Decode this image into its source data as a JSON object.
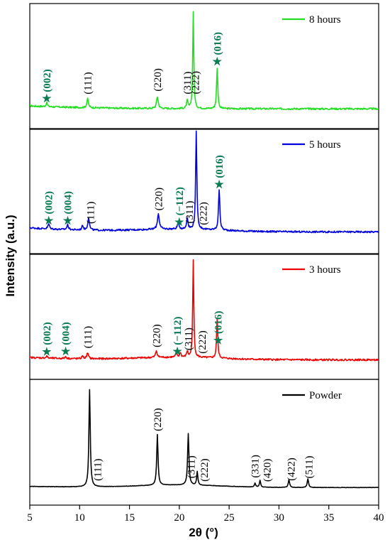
{
  "chart_data": {
    "type": "line",
    "xlabel": "2θ (°)",
    "ylabel": "Intensity (a.u.)",
    "xlim": [
      5,
      40
    ],
    "xticks": [
      5,
      10,
      15,
      20,
      25,
      30,
      35,
      40
    ],
    "xtick_labels": [
      "5",
      "10",
      "15",
      "20",
      "25",
      "30",
      "35",
      "40"
    ],
    "star_symbol": "★",
    "marker_color": "#0a7a52",
    "panels": [
      {
        "name": "8 hours",
        "color": "#22dd22",
        "legend_position": "top-right",
        "baseline": 0.05,
        "peaks": [
          {
            "x": 6.7,
            "h": 0.04,
            "w": 0.1
          },
          {
            "x": 10.8,
            "h": 0.09,
            "w": 0.12
          },
          {
            "x": 17.8,
            "h": 0.12,
            "w": 0.13
          },
          {
            "x": 20.8,
            "h": 0.08,
            "w": 0.1
          },
          {
            "x": 21.4,
            "h": 1.0,
            "w": 0.08
          },
          {
            "x": 23.8,
            "h": 0.42,
            "w": 0.09
          }
        ],
        "annotations": [
          {
            "text": "(002)",
            "x": 6.7,
            "star": true,
            "color": "green"
          },
          {
            "text": "(111)",
            "x": 10.8,
            "star": false,
            "color": "black"
          },
          {
            "text": "(220)",
            "x": 17.8,
            "star": false,
            "color": "black"
          },
          {
            "text": "(311)",
            "x": 20.8,
            "star": false,
            "color": "black"
          },
          {
            "text": "(222)",
            "x": 21.6,
            "star": false,
            "color": "black"
          },
          {
            "text": "(016)",
            "x": 23.8,
            "star": true,
            "color": "green"
          }
        ]
      },
      {
        "name": "5 hours",
        "color": "#0000dd",
        "legend_position": "top-right",
        "baseline": 0.07,
        "peaks": [
          {
            "x": 6.9,
            "h": 0.05,
            "w": 0.12
          },
          {
            "x": 8.8,
            "h": 0.05,
            "w": 0.12
          },
          {
            "x": 10.3,
            "h": 0.05,
            "w": 0.1
          },
          {
            "x": 10.9,
            "h": 0.13,
            "w": 0.12
          },
          {
            "x": 17.9,
            "h": 0.16,
            "w": 0.14
          },
          {
            "x": 19.9,
            "h": 0.07,
            "w": 0.12
          },
          {
            "x": 20.8,
            "h": 0.12,
            "w": 0.1
          },
          {
            "x": 21.7,
            "h": 1.0,
            "w": 0.09
          },
          {
            "x": 24.0,
            "h": 0.42,
            "w": 0.1
          }
        ],
        "annotations": [
          {
            "text": "(002)",
            "x": 6.9,
            "star": true,
            "color": "green"
          },
          {
            "text": "(004)",
            "x": 8.8,
            "star": true,
            "color": "green"
          },
          {
            "text": "(111)",
            "x": 11.1,
            "star": false,
            "color": "black"
          },
          {
            "text": "(220)",
            "x": 17.9,
            "star": false,
            "color": "black"
          },
          {
            "text": "(−112)",
            "x": 20.0,
            "star": true,
            "color": "green"
          },
          {
            "text": "(311)",
            "x": 21.0,
            "star": false,
            "color": "black"
          },
          {
            "text": "(222)",
            "x": 22.4,
            "star": false,
            "color": "black"
          },
          {
            "text": "(016)",
            "x": 24.0,
            "star": true,
            "color": "green"
          }
        ]
      },
      {
        "name": "3 hours",
        "color": "#ee0000",
        "legend_position": "top-right",
        "baseline": 0.04,
        "peaks": [
          {
            "x": 6.7,
            "h": 0.02,
            "w": 0.1
          },
          {
            "x": 8.6,
            "h": 0.02,
            "w": 0.1
          },
          {
            "x": 10.3,
            "h": 0.03,
            "w": 0.1
          },
          {
            "x": 10.8,
            "h": 0.06,
            "w": 0.12
          },
          {
            "x": 17.7,
            "h": 0.07,
            "w": 0.12
          },
          {
            "x": 19.7,
            "h": 0.04,
            "w": 0.1
          },
          {
            "x": 20.1,
            "h": 0.05,
            "w": 0.1
          },
          {
            "x": 20.8,
            "h": 0.06,
            "w": 0.1
          },
          {
            "x": 21.4,
            "h": 1.0,
            "w": 0.08
          },
          {
            "x": 23.8,
            "h": 0.4,
            "w": 0.09
          }
        ],
        "annotations": [
          {
            "text": "(002)",
            "x": 6.7,
            "star": true,
            "color": "green"
          },
          {
            "text": "(004)",
            "x": 8.6,
            "star": true,
            "color": "green"
          },
          {
            "text": "(111)",
            "x": 10.8,
            "star": false,
            "color": "black"
          },
          {
            "text": "(220)",
            "x": 17.7,
            "star": false,
            "color": "black"
          },
          {
            "text": "(−112)",
            "x": 19.8,
            "star": true,
            "color": "green"
          },
          {
            "text": "(311)",
            "x": 20.9,
            "star": false,
            "color": "black"
          },
          {
            "text": "(222)",
            "x": 22.3,
            "star": false,
            "color": "black"
          },
          {
            "text": "(016)",
            "x": 23.9,
            "star": true,
            "color": "green"
          }
        ]
      },
      {
        "name": "Powder",
        "color": "#000000",
        "legend_position": "top-right",
        "baseline": 0.02,
        "peaks": [
          {
            "x": 11.0,
            "h": 1.0,
            "w": 0.1
          },
          {
            "x": 17.8,
            "h": 0.52,
            "w": 0.1
          },
          {
            "x": 20.9,
            "h": 0.53,
            "w": 0.1
          },
          {
            "x": 21.8,
            "h": 0.14,
            "w": 0.09
          },
          {
            "x": 27.6,
            "h": 0.04,
            "w": 0.09
          },
          {
            "x": 28.1,
            "h": 0.07,
            "w": 0.09
          },
          {
            "x": 31.0,
            "h": 0.08,
            "w": 0.1
          },
          {
            "x": 32.9,
            "h": 0.09,
            "w": 0.1
          }
        ],
        "annotations": [
          {
            "text": "(111)",
            "x": 11.8,
            "star": false,
            "color": "black"
          },
          {
            "text": "(220)",
            "x": 17.8,
            "star": false,
            "color": "black"
          },
          {
            "text": "(311)",
            "x": 21.2,
            "star": false,
            "color": "black"
          },
          {
            "text": "(222)",
            "x": 22.5,
            "star": false,
            "color": "black"
          },
          {
            "text": "(331)",
            "x": 27.6,
            "star": false,
            "color": "black"
          },
          {
            "text": "(420)",
            "x": 28.8,
            "star": false,
            "color": "black"
          },
          {
            "text": "(422)",
            "x": 31.2,
            "star": false,
            "color": "black"
          },
          {
            "text": "(511)",
            "x": 33.0,
            "star": false,
            "color": "black"
          }
        ]
      }
    ]
  }
}
